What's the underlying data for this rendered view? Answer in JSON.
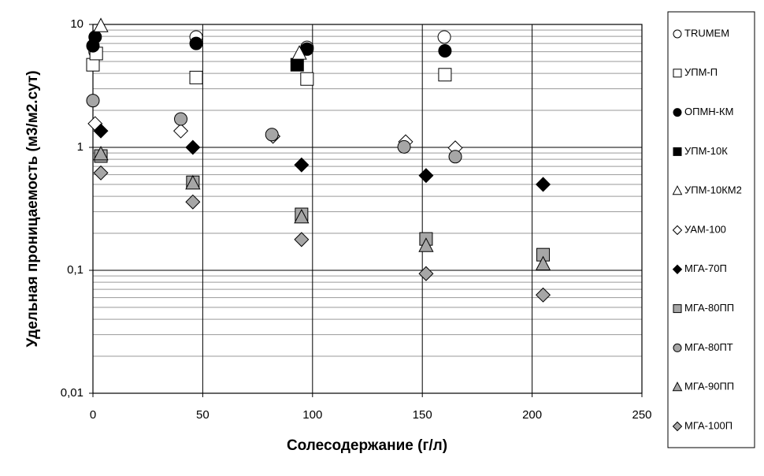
{
  "chart_data": {
    "type": "scatter",
    "x_label": "Солесодержание (г/л)",
    "y_label": "Удельная проницаемость (м3/м2.сут)",
    "xlim": [
      0,
      250
    ],
    "xticks": [
      0,
      50,
      100,
      150,
      200,
      250
    ],
    "ylim": [
      0.01,
      10
    ],
    "y_scale": "log",
    "yticks": [
      {
        "value": 0.01,
        "label": "0,01"
      },
      {
        "value": 0.1,
        "label": "0,1"
      },
      1,
      10
    ],
    "grid": true,
    "minor_grid": true,
    "legend": "right",
    "series": [
      {
        "name": "TRUMEM",
        "marker": "circle",
        "color": "#ffffff",
        "x": [
          1,
          47,
          97.5,
          160
        ],
        "values": [
          6,
          7.9,
          6.5,
          7.9
        ]
      },
      {
        "name": "УПМ-П",
        "marker": "square",
        "color": "#ffffff",
        "x": [
          0,
          1.5,
          47,
          97.5,
          160.3
        ],
        "values": [
          4.7,
          5.8,
          3.7,
          3.6,
          3.9
        ]
      },
      {
        "name": "ОПМН-КМ",
        "marker": "circle",
        "color": "#000000",
        "x": [
          0,
          1,
          47,
          97.5,
          160.3
        ],
        "values": [
          6.7,
          7.9,
          7,
          6.3,
          6.1
        ]
      },
      {
        "name": "УПМ-10К",
        "marker": "square",
        "color": "#000000",
        "x": [
          93
        ],
        "values": [
          4.7
        ]
      },
      {
        "name": "УПМ-10КМ2",
        "marker": "triangle",
        "color": "#ffffff",
        "x": [
          3.6,
          94
        ],
        "values": [
          9.7,
          5.8
        ]
      },
      {
        "name": "УАМ-100",
        "marker": "diamond",
        "color": "#ffffff",
        "x": [
          1,
          40,
          82,
          142.4,
          165
        ],
        "values": [
          1.56,
          1.36,
          1.23,
          1.11,
          0.99
        ]
      },
      {
        "name": "МГА-70П",
        "marker": "diamond",
        "color": "#000000",
        "x": [
          3.6,
          45.5,
          95,
          151.7,
          205
        ],
        "values": [
          1.36,
          1,
          0.72,
          0.59,
          0.5
        ]
      },
      {
        "name": "МГА-80ПП",
        "marker": "square",
        "color": "#a6a6a6",
        "x": [
          3.6,
          45.5,
          95,
          151.7,
          205
        ],
        "values": [
          0.85,
          0.52,
          0.285,
          0.18,
          0.134
        ]
      },
      {
        "name": "МГА-80ПТ",
        "marker": "circle",
        "color": "#a6a6a6",
        "x": [
          0,
          40,
          81.5,
          141.7,
          165
        ],
        "values": [
          2.4,
          1.7,
          1.27,
          1.01,
          0.84
        ]
      },
      {
        "name": "МГА-90ПП",
        "marker": "triangle",
        "color": "#a6a6a6",
        "x": [
          3.6,
          45.5,
          95,
          151.7,
          205
        ],
        "values": [
          0.88,
          0.51,
          0.27,
          0.158,
          0.112
        ]
      },
      {
        "name": "МГА-100П",
        "marker": "diamond",
        "color": "#a6a6a6",
        "x": [
          3.6,
          45.5,
          95,
          151.7,
          205
        ],
        "values": [
          0.62,
          0.36,
          0.178,
          0.094,
          0.063
        ]
      }
    ]
  }
}
